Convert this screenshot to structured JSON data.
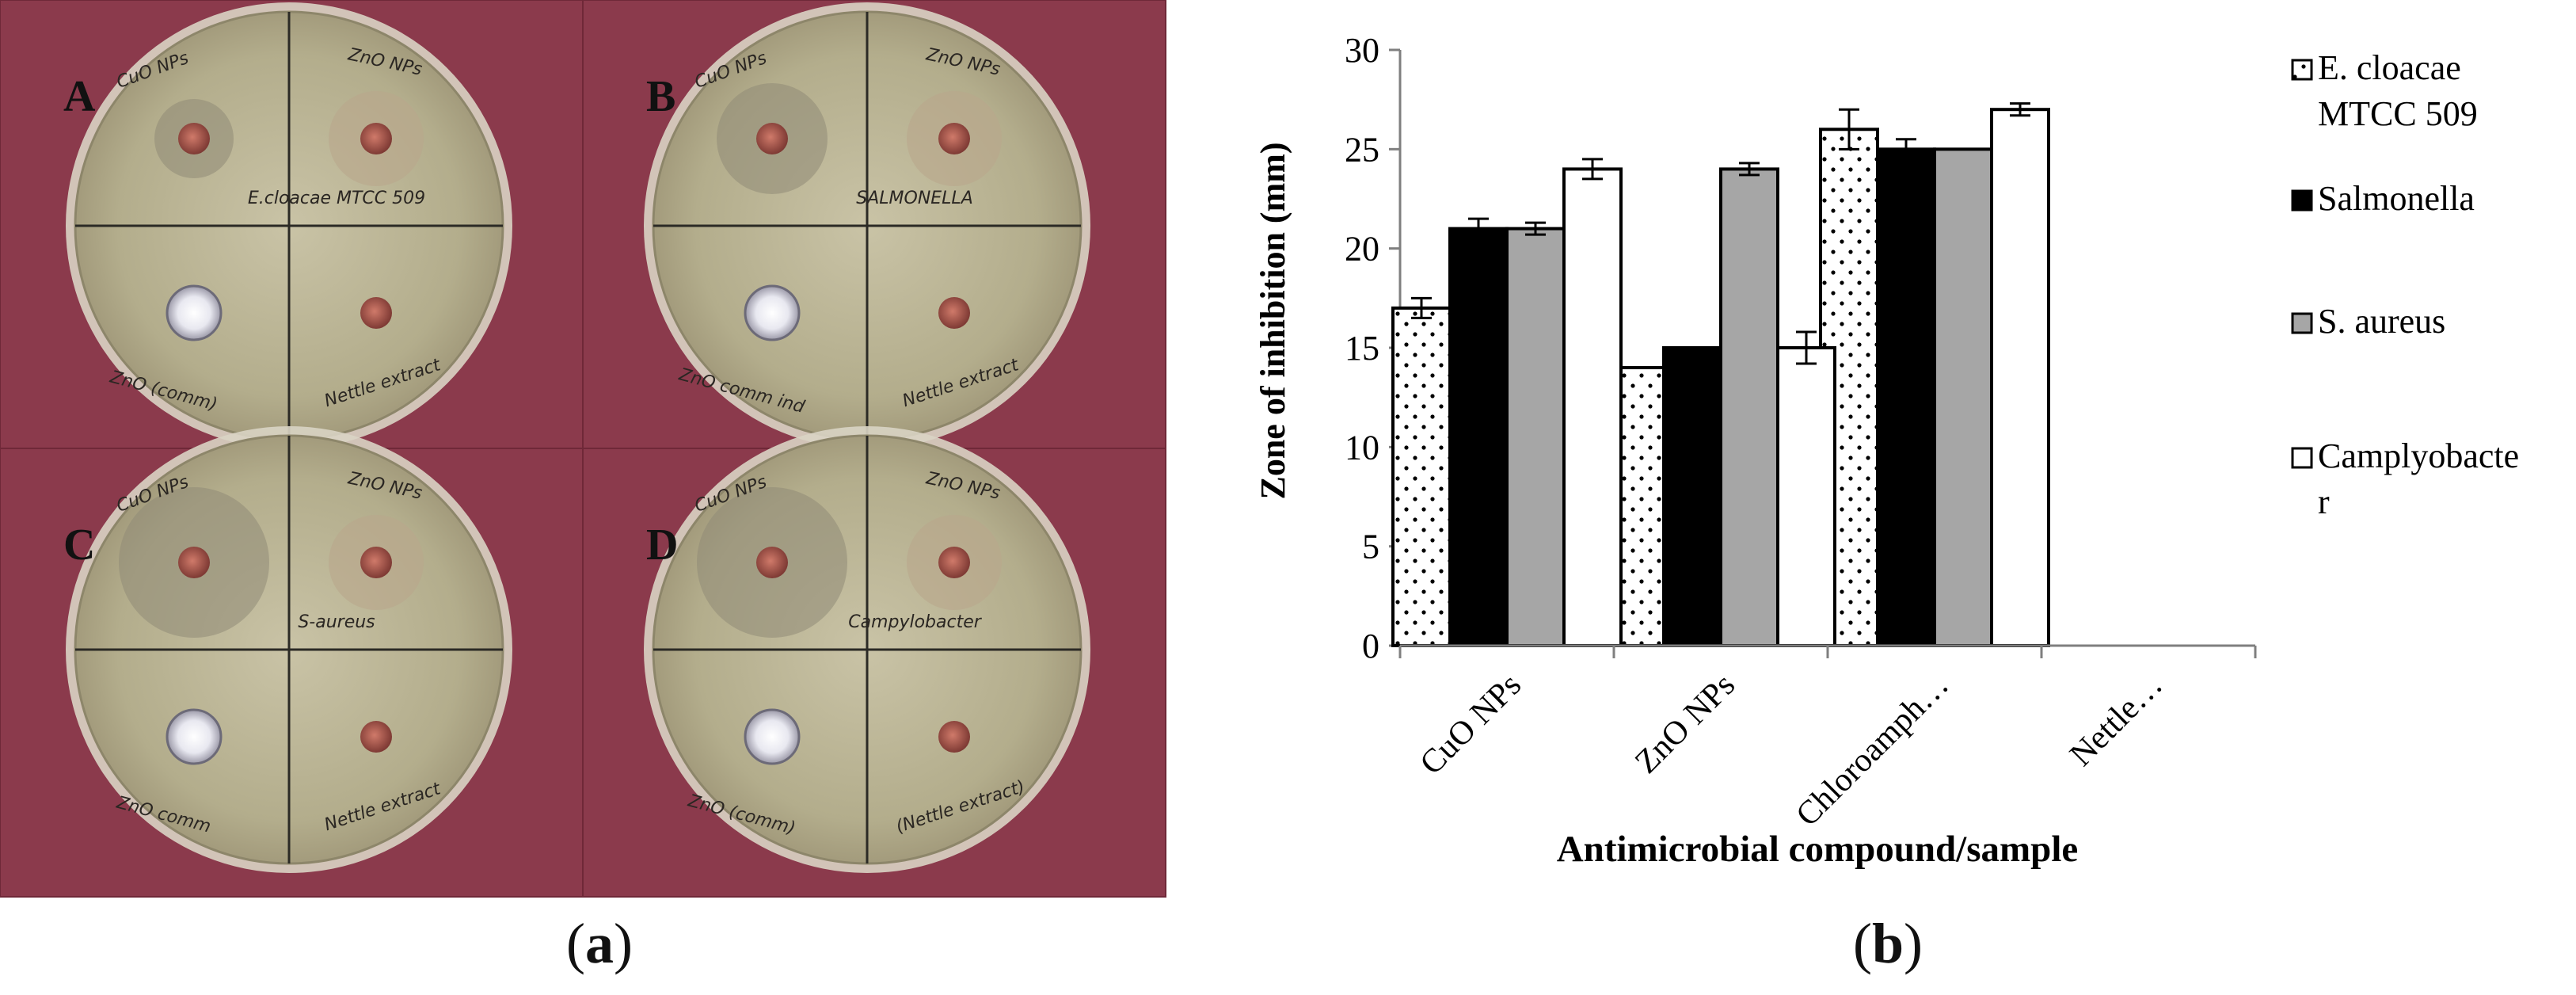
{
  "panels": {
    "a": {
      "caption_open": "(",
      "caption_letter": "a",
      "caption_close": ")"
    },
    "b": {
      "caption_open": "(",
      "caption_letter": "b",
      "caption_close": ")"
    }
  },
  "photo": {
    "background": "#8b3a4c",
    "plates": [
      {
        "letter": "A",
        "labels": {
          "tl": "CuO NPs",
          "tr": "ZnO NPs",
          "mid": "E.cloacae MTCC 509",
          "bl": "ZnO (comm)",
          "br": "Nettle extract"
        },
        "zone": "small"
      },
      {
        "letter": "B",
        "labels": {
          "tl": "CuO NPs",
          "tr": "ZnO NPs",
          "mid": "SALMONELLA",
          "bl": "ZnO comm ind",
          "br": "Nettle extract"
        },
        "zone": "medium"
      },
      {
        "letter": "C",
        "labels": {
          "tl": "CuO NPs",
          "tr": "ZnO NPs",
          "mid": "S-aureus",
          "bl": "ZnO comm",
          "br": "Nettle extract"
        },
        "zone": "large"
      },
      {
        "letter": "D",
        "labels": {
          "tl": "CuO NPs",
          "tr": "ZnO NPs",
          "mid": "Campylobacter",
          "bl": "ZnO (comm)",
          "br": "(Nettle extract)"
        },
        "zone": "large"
      }
    ]
  },
  "chart_data": {
    "type": "bar",
    "title": "",
    "xlabel": "Antimicrobial compound/sample",
    "ylabel": "Zone of inhibition (mm)",
    "ylim": [
      0,
      30
    ],
    "yticks": [
      0,
      5,
      10,
      15,
      20,
      25,
      30
    ],
    "categories": [
      "CuO NPs",
      "ZnO NPs",
      "Chloroamph…",
      "Nettle…"
    ],
    "series": [
      {
        "name": "E. cloacae MTCC 509",
        "legend_lines": [
          "E. cloacae",
          "MTCC 509"
        ],
        "pattern": "dots",
        "values": [
          17,
          14,
          26,
          null
        ],
        "errors": [
          0.5,
          0,
          1.0,
          null
        ]
      },
      {
        "name": "Salmonella",
        "legend_lines": [
          "Salmonella"
        ],
        "pattern": "black",
        "values": [
          21,
          15,
          25,
          null
        ],
        "errors": [
          0.5,
          0,
          0.5,
          null
        ]
      },
      {
        "name": "S. aureus",
        "legend_lines": [
          "S. aureus"
        ],
        "pattern": "gray",
        "values": [
          21,
          24,
          25,
          null
        ],
        "errors": [
          0.3,
          0.3,
          0,
          null
        ]
      },
      {
        "name": "Camplyobacter",
        "legend_lines": [
          "Camplyobacte",
          "r"
        ],
        "pattern": "white",
        "values": [
          24,
          15,
          27,
          null
        ],
        "errors": [
          0.5,
          0.8,
          0.3,
          null
        ]
      }
    ],
    "legend_position": "right",
    "grid": false,
    "colors": {
      "black": "#000000",
      "gray": "#a6a6a6",
      "white": "#ffffff",
      "axis": "#7f7f7f"
    }
  }
}
